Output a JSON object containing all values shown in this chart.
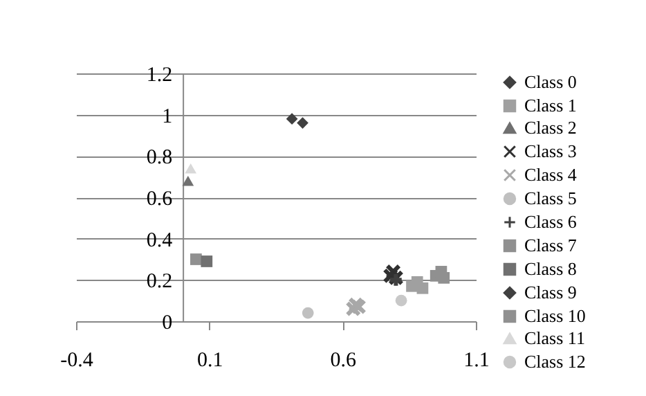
{
  "chart_data": {
    "type": "scatter",
    "xlim": [
      -0.4,
      1.1
    ],
    "xticks": [
      -0.4,
      0.1,
      0.6,
      1.1
    ],
    "ylim": [
      0,
      1.2
    ],
    "yticks": [
      0,
      0.2,
      0.4,
      0.6,
      0.8,
      1,
      1.2
    ],
    "grid": "y",
    "legend": "right",
    "series": [
      {
        "name": "Class 0",
        "color": "#404040",
        "marker": "diamond",
        "x": [
          0.41
        ],
        "values": [
          0.98
        ]
      },
      {
        "name": "Class 1",
        "color": "#a0a0a0",
        "marker": "square",
        "x": [
          0.86,
          0.88,
          0.9
        ],
        "values": [
          0.17,
          0.19,
          0.16
        ]
      },
      {
        "name": "Class 2",
        "color": "#707070",
        "marker": "triangle",
        "x": [
          0.02
        ],
        "values": [
          0.68
        ]
      },
      {
        "name": "Class 3",
        "color": "#303030",
        "marker": "cross",
        "x": [
          0.78,
          0.79,
          0.8
        ],
        "values": [
          0.22,
          0.24,
          0.21
        ]
      },
      {
        "name": "Class 4",
        "color": "#a8a8a8",
        "marker": "cross",
        "x": [
          0.64,
          0.65,
          0.66
        ],
        "values": [
          0.06,
          0.08,
          0.07
        ]
      },
      {
        "name": "Class 5",
        "color": "#c0c0c0",
        "marker": "circle",
        "x": [
          0.47
        ],
        "values": [
          0.04
        ]
      },
      {
        "name": "Class 6",
        "color": "#404040",
        "marker": "plus",
        "x": [
          0.8
        ],
        "values": [
          0.2
        ]
      },
      {
        "name": "Class 7",
        "color": "#909090",
        "marker": "square",
        "x": [
          0.05
        ],
        "values": [
          0.3
        ]
      },
      {
        "name": "Class 8",
        "color": "#707070",
        "marker": "square",
        "x": [
          0.09
        ],
        "values": [
          0.29
        ]
      },
      {
        "name": "Class 9",
        "color": "#404040",
        "marker": "diamond",
        "x": [
          0.45
        ],
        "values": [
          0.96
        ]
      },
      {
        "name": "Class 10",
        "color": "#909090",
        "marker": "square",
        "x": [
          0.95,
          0.97,
          0.98
        ],
        "values": [
          0.22,
          0.24,
          0.21
        ]
      },
      {
        "name": "Class 11",
        "color": "#d8d8d8",
        "marker": "triangle",
        "x": [
          0.03
        ],
        "values": [
          0.74
        ]
      },
      {
        "name": "Class 12",
        "color": "#c8c8c8",
        "marker": "circle",
        "x": [
          0.82
        ],
        "values": [
          0.1
        ]
      }
    ]
  }
}
